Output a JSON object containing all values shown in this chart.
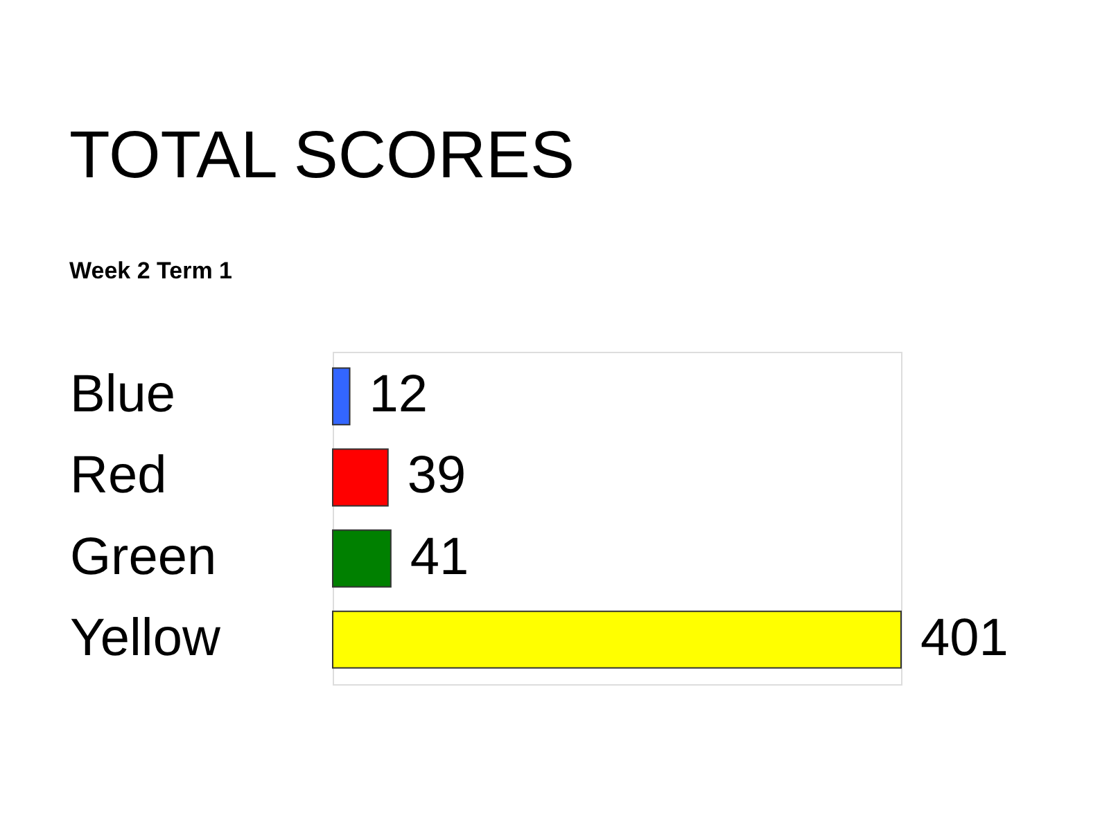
{
  "chart_data": {
    "type": "bar",
    "orientation": "horizontal",
    "title": "TOTAL SCORES",
    "subtitle": "Week 2 Term 1",
    "categories": [
      "Blue",
      "Red",
      "Green",
      "Yellow"
    ],
    "values": [
      12,
      39,
      41,
      401
    ],
    "colors": [
      "#3366ff",
      "#ff0000",
      "#008000",
      "#ffff00"
    ],
    "data_labels": true
  }
}
